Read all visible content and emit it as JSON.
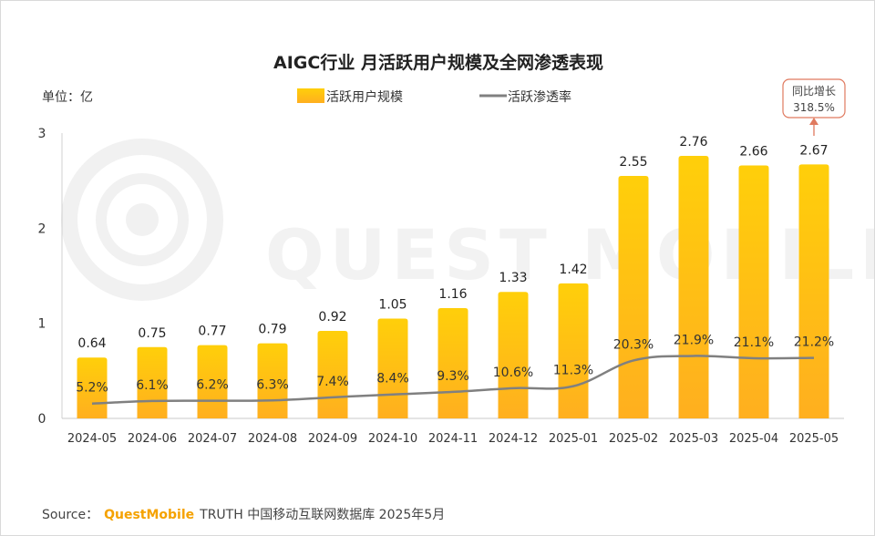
{
  "chart_data": {
    "type": "bar+line",
    "title": "AIGC行业 月活跃用户规模及全网渗透表现",
    "unit_label": "单位：亿",
    "categories": [
      "2024-05",
      "2024-06",
      "2024-07",
      "2024-08",
      "2024-09",
      "2024-10",
      "2024-11",
      "2024-12",
      "2025-01",
      "2025-02",
      "2025-03",
      "2025-04",
      "2025-05"
    ],
    "series": [
      {
        "name": "活跃用户规模",
        "type": "bar",
        "values": [
          0.64,
          0.75,
          0.77,
          0.79,
          0.92,
          1.05,
          1.16,
          1.33,
          1.42,
          2.55,
          2.76,
          2.66,
          2.67
        ],
        "labels": [
          "0.64",
          "0.75",
          "0.77",
          "0.79",
          "0.92",
          "1.05",
          "1.16",
          "1.33",
          "1.42",
          "2.55",
          "2.76",
          "2.66",
          "2.67"
        ],
        "color_top": "#ffcf0a",
        "color_bottom": "#ffaf1f"
      },
      {
        "name": "活跃渗透率",
        "type": "line",
        "values": [
          5.2,
          6.1,
          6.2,
          6.3,
          7.4,
          8.4,
          9.3,
          10.6,
          11.3,
          20.3,
          21.9,
          21.1,
          21.2
        ],
        "labels": [
          "5.2%",
          "6.1%",
          "6.2%",
          "6.3%",
          "7.4%",
          "8.4%",
          "9.3%",
          "10.6%",
          "11.3%",
          "20.3%",
          "21.9%",
          "21.1%",
          "21.2%"
        ],
        "color": "#808080"
      }
    ],
    "y_axis": {
      "min": 0,
      "max": 3,
      "ticks": [
        "0",
        "1",
        "2",
        "3"
      ]
    },
    "line_scale_max_percent": 100,
    "annotation": {
      "title": "同比增长",
      "value": "318.5%",
      "target_category": "2025-05",
      "border_color": "#e07a5f"
    },
    "legend": {
      "position": "top-center"
    },
    "grid": false
  },
  "source": {
    "prefix": "Source：",
    "brand": "QuestMobile",
    "suffix": "TRUTH 中国移动互联网数据库 2025年5月"
  },
  "watermark": "QUEST MOBILE"
}
